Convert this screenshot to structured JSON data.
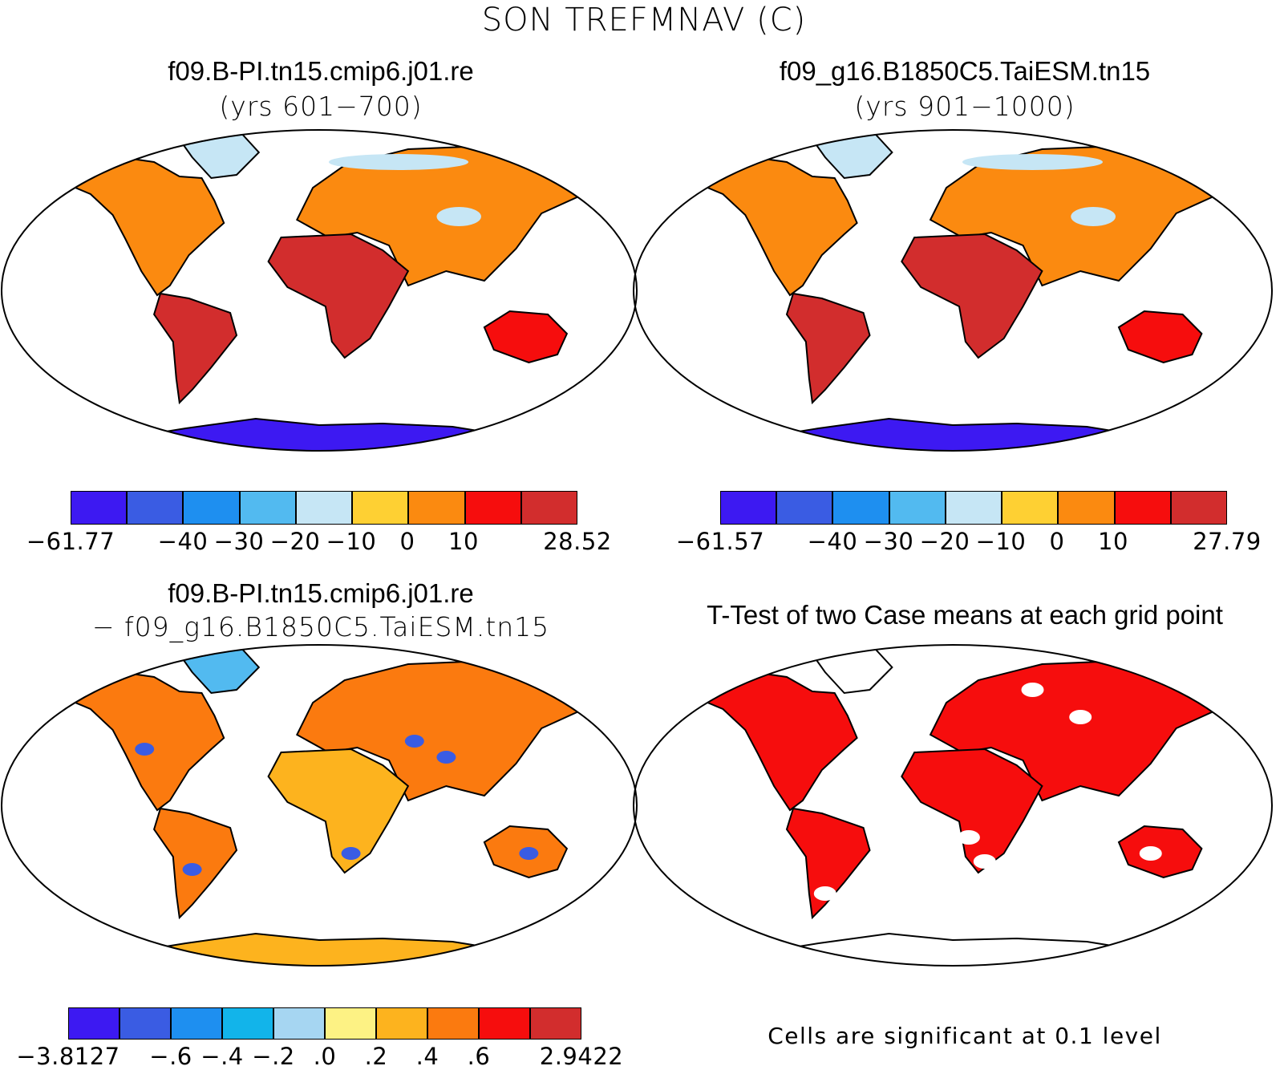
{
  "title": "SON TREFMNAV (C)",
  "panels": [
    {
      "id": "tl",
      "title": "f09.B-PI.tn15.cmip6.j01.re",
      "subtitle": "(yrs 601−700)",
      "style": "case1"
    },
    {
      "id": "tr",
      "title": "f09_g16.B1850C5.TaiESM.tn15",
      "subtitle": "(yrs 901−1000)",
      "style": "case2"
    },
    {
      "id": "bl",
      "title": "f09.B-PI.tn15.cmip6.j01.re",
      "subtitle": "− f09_g16.B1850C5.TaiESM.tn15",
      "style": "diff"
    },
    {
      "id": "br",
      "title": "T-Test of two Case means at each grid point",
      "subtitle": "",
      "style": "ttest"
    }
  ],
  "colorbars": [
    {
      "id": "cb1",
      "colors": [
        "#3d19f2",
        "#3a5ce3",
        "#1e8ff0",
        "#52baf0",
        "#c6e6f5",
        "#fed033",
        "#fb8a10",
        "#f60d0d",
        "#d22d2d"
      ],
      "labels": [
        "−61.77",
        "−40",
        "−30",
        "−20",
        "−10",
        "0",
        "10",
        "28.52"
      ]
    },
    {
      "id": "cb2",
      "colors": [
        "#3d19f2",
        "#3a5ce3",
        "#1e8ff0",
        "#52baf0",
        "#c6e6f5",
        "#fed033",
        "#fb8a10",
        "#f60d0d",
        "#d22d2d"
      ],
      "labels": [
        "−61.57",
        "−40",
        "−30",
        "−20",
        "−10",
        "0",
        "10",
        "27.79"
      ]
    },
    {
      "id": "cb3",
      "colors": [
        "#3d19f2",
        "#3a5ce3",
        "#1e8ff0",
        "#12b4ea",
        "#a6d6f2",
        "#fdf284",
        "#fdb31e",
        "#fb7a0f",
        "#f60d0d",
        "#d22d2d"
      ],
      "labels": [
        "−3.8127",
        "−.6",
        "−.4",
        "−.2",
        ".0",
        ".2",
        ".4",
        ".6",
        "2.9422"
      ]
    }
  ],
  "ttest_note": "Cells are significant at 0.1 level"
}
